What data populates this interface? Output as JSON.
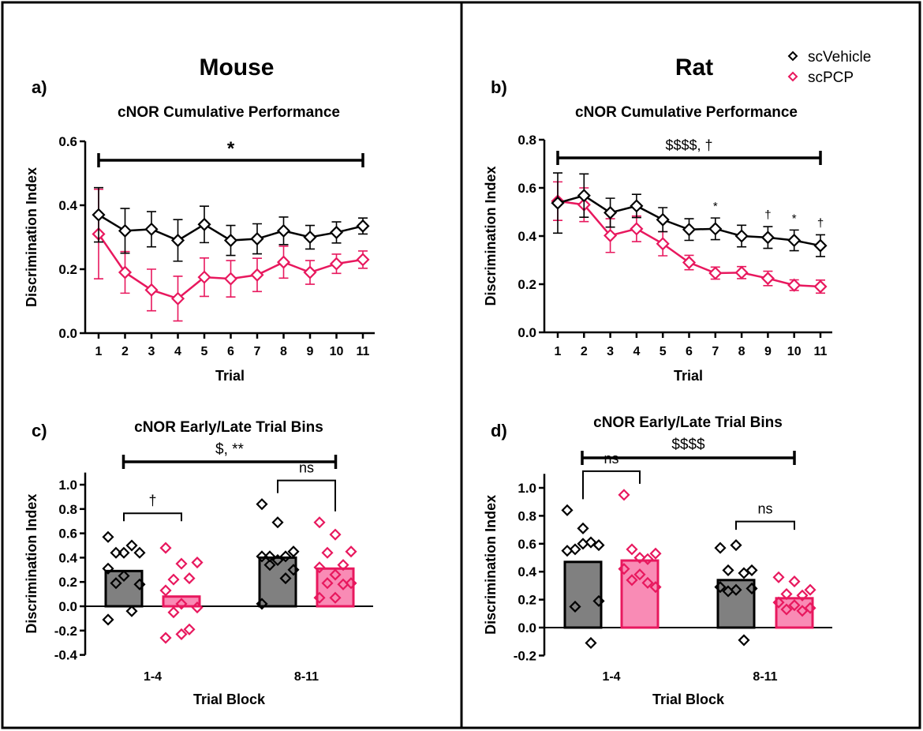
{
  "headers": {
    "left": "Mouse",
    "right": "Rat"
  },
  "legend": [
    {
      "name": "scVehicle",
      "color": "#000000"
    },
    {
      "name": "scPCP",
      "color": "#e8185e"
    }
  ],
  "colors": {
    "vehicle": "#000000",
    "pcp": "#e8185e",
    "vehicle_bar": "#808080",
    "pcp_bar": "#f98bb5"
  },
  "chart_data": [
    {
      "panel": "a)",
      "type": "line",
      "title": "cNOR Cumulative Performance",
      "xlabel": "Trial",
      "ylabel": "Discrimination Index",
      "x": [
        1,
        2,
        3,
        4,
        5,
        6,
        7,
        8,
        9,
        10,
        11
      ],
      "ylim": [
        0,
        0.6
      ],
      "yticks": [
        "0.0",
        "0.2",
        "0.4",
        "0.6"
      ],
      "series": [
        {
          "name": "scVehicle",
          "values": [
            0.37,
            0.32,
            0.325,
            0.29,
            0.34,
            0.29,
            0.295,
            0.32,
            0.3,
            0.315,
            0.335
          ],
          "error": [
            0.085,
            0.07,
            0.055,
            0.065,
            0.057,
            0.047,
            0.047,
            0.043,
            0.037,
            0.033,
            0.025
          ]
        },
        {
          "name": "scPCP",
          "values": [
            0.31,
            0.19,
            0.135,
            0.108,
            0.175,
            0.17,
            0.182,
            0.222,
            0.19,
            0.217,
            0.23
          ],
          "error": [
            0.14,
            0.065,
            0.065,
            0.07,
            0.06,
            0.057,
            0.052,
            0.05,
            0.037,
            0.03,
            0.027
          ]
        }
      ],
      "bracket": {
        "from": 1,
        "to": 11,
        "label": "*"
      },
      "point_marks": []
    },
    {
      "panel": "b)",
      "type": "line",
      "title": "cNOR Cumulative Performance",
      "xlabel": "Trial",
      "ylabel": "Discrimination Index",
      "x": [
        1,
        2,
        3,
        4,
        5,
        6,
        7,
        8,
        9,
        10,
        11
      ],
      "ylim": [
        0,
        0.8
      ],
      "yticks": [
        "0.0",
        "0.2",
        "0.4",
        "0.6",
        "0.8"
      ],
      "series": [
        {
          "name": "scVehicle",
          "values": [
            0.537,
            0.568,
            0.497,
            0.525,
            0.468,
            0.427,
            0.43,
            0.4,
            0.394,
            0.382,
            0.36
          ],
          "error": [
            0.125,
            0.09,
            0.06,
            0.048,
            0.05,
            0.045,
            0.045,
            0.045,
            0.045,
            0.043,
            0.045
          ]
        },
        {
          "name": "scPCP",
          "values": [
            0.545,
            0.53,
            0.402,
            0.43,
            0.368,
            0.29,
            0.246,
            0.248,
            0.224,
            0.196,
            0.19
          ],
          "error": [
            0.08,
            0.07,
            0.07,
            0.053,
            0.05,
            0.03,
            0.025,
            0.025,
            0.03,
            0.022,
            0.027
          ]
        }
      ],
      "bracket": {
        "from": 1,
        "to": 11,
        "label": "$$$$, †"
      },
      "point_marks": [
        {
          "x": 7,
          "label": "*"
        },
        {
          "x": 9,
          "label": "†"
        },
        {
          "x": 10,
          "label": "*"
        },
        {
          "x": 11,
          "label": "†"
        }
      ]
    },
    {
      "panel": "c)",
      "type": "bar",
      "title": "cNOR Early/Late Trial Bins",
      "xlabel": "Trial Block",
      "ylabel": "Discrimination Index",
      "categories": [
        "1-4",
        "8-11"
      ],
      "ylim": [
        -0.4,
        1.1
      ],
      "yticks": [
        "-0.4",
        "-0.2",
        "0.0",
        "0.2",
        "0.4",
        "0.6",
        "0.8",
        "1.0"
      ],
      "series": [
        {
          "name": "scVehicle",
          "means": [
            0.29,
            0.4
          ],
          "points": [
            [
              0.57,
              0.44,
              0.44,
              0.44,
              0.5,
              0.31,
              0.25,
              0.18,
              0.19,
              -0.04,
              -0.11
            ],
            [
              0.84,
              0.69,
              0.45,
              0.41,
              0.41,
              0.41,
              0.38,
              0.3,
              0.34,
              0.23,
              0.02
            ]
          ]
        },
        {
          "name": "scPCP",
          "means": [
            0.08,
            0.31
          ],
          "points": [
            [
              0.48,
              0.35,
              0.36,
              0.22,
              0.23,
              0.13,
              0.02,
              -0.01,
              -0.05,
              -0.19,
              -0.26,
              -0.23
            ],
            [
              0.69,
              0.59,
              0.45,
              0.44,
              0.34,
              0.32,
              0.26,
              0.19,
              0.19,
              0.18,
              0.07,
              0.07
            ]
          ]
        }
      ],
      "bracket": {
        "label": "$, **"
      },
      "pair_labels": [
        "†",
        "ns"
      ]
    },
    {
      "panel": "d)",
      "type": "bar",
      "title": "cNOR Early/Late Trial Bins",
      "xlabel": "Trial Block",
      "ylabel": "Discrimination Index",
      "categories": [
        "1-4",
        "8-11"
      ],
      "ylim": [
        -0.2,
        1.1
      ],
      "yticks": [
        "-0.2",
        "0.0",
        "0.2",
        "0.4",
        "0.6",
        "0.8",
        "1.0"
      ],
      "series": [
        {
          "name": "scVehicle",
          "means": [
            0.47,
            0.34
          ],
          "points": [
            [
              0.84,
              0.71,
              0.59,
              0.56,
              0.61,
              0.55,
              0.6,
              0.19,
              0.15,
              -0.11
            ],
            [
              0.57,
              0.59,
              0.41,
              0.41,
              0.39,
              0.29,
              0.27,
              0.28,
              0.26,
              -0.09
            ]
          ]
        },
        {
          "name": "scPCP",
          "means": [
            0.48,
            0.21
          ],
          "points": [
            [
              0.95,
              0.5,
              0.53,
              0.56,
              0.49,
              0.42,
              0.38,
              0.29,
              0.34,
              0.32
            ],
            [
              0.36,
              0.33,
              0.27,
              0.24,
              0.23,
              0.18,
              0.16,
              0.14,
              0.13,
              0.12
            ]
          ]
        }
      ],
      "bracket": {
        "label": "$$$$"
      },
      "pair_labels": [
        "ns",
        "ns"
      ]
    }
  ]
}
